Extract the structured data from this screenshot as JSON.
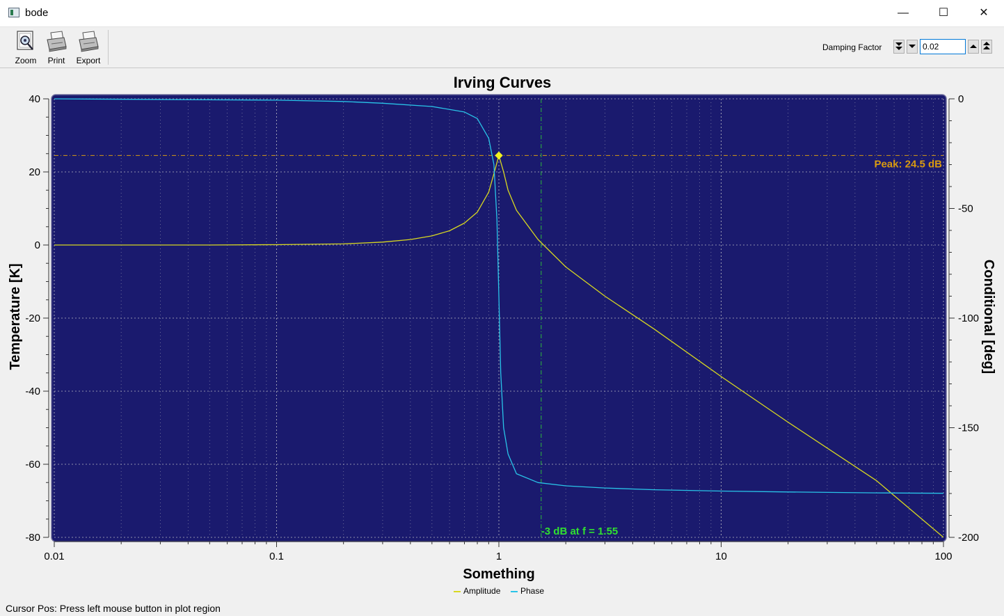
{
  "window": {
    "title": "bode",
    "minimize": "—",
    "maximize": "☐",
    "close": "✕"
  },
  "toolbar": {
    "zoom_label": "Zoom",
    "print_label": "Print",
    "export_label": "Export",
    "damping_label": "Damping Factor",
    "damping_value": "0.02"
  },
  "chart_data": {
    "type": "line",
    "title": "Irving Curves",
    "xlabel": "Something",
    "ylabel_left": "Temperature [K]",
    "ylabel_right": "Conditional [deg]",
    "xscale": "log",
    "xlim": [
      0.01,
      100
    ],
    "ylim_left": [
      -80,
      40
    ],
    "ylim_right": [
      -200,
      0
    ],
    "x_ticks": [
      "0.01",
      "0.1",
      "1",
      "10",
      "100"
    ],
    "y_ticks_left": [
      "40",
      "20",
      "0",
      "-20",
      "-40",
      "-60",
      "-80"
    ],
    "y_ticks_right": [
      "0",
      "-50",
      "-100",
      "-150",
      "-200"
    ],
    "grid": true,
    "background": "#1a1a6e",
    "series": [
      {
        "name": "Amplitude",
        "axis": "left",
        "color": "#d8d820",
        "x": [
          0.01,
          0.05,
          0.1,
          0.2,
          0.3,
          0.4,
          0.5,
          0.6,
          0.7,
          0.8,
          0.9,
          0.95,
          1.0,
          1.05,
          1.1,
          1.2,
          1.5,
          2,
          3,
          5,
          10,
          20,
          50,
          100
        ],
        "y": [
          0,
          0,
          0.1,
          0.3,
          0.8,
          1.5,
          2.5,
          3.9,
          6.0,
          9.0,
          14.5,
          19.5,
          24.5,
          20.0,
          15.0,
          9.5,
          1.5,
          -6,
          -14,
          -23,
          -36,
          -48.5,
          -64.5,
          -80
        ]
      },
      {
        "name": "Phase",
        "axis": "right",
        "color": "#29c4e8",
        "x": [
          0.01,
          0.1,
          0.2,
          0.3,
          0.5,
          0.7,
          0.8,
          0.9,
          0.95,
          0.98,
          1.0,
          1.02,
          1.05,
          1.1,
          1.2,
          1.5,
          2,
          3,
          5,
          10,
          20,
          50,
          100
        ],
        "y": [
          0,
          -0.6,
          -1.2,
          -2,
          -3.5,
          -6,
          -9,
          -18,
          -30,
          -55,
          -90,
          -125,
          -150,
          -162,
          -171,
          -175,
          -176.5,
          -177.5,
          -178.3,
          -178.9,
          -179.3,
          -179.7,
          -179.9
        ]
      }
    ],
    "annotations": [
      {
        "text": "Peak: 24.5 dB",
        "type": "hline",
        "y": 24.5,
        "color": "#d89a10"
      },
      {
        "text": "-3 dB at f = 1.55",
        "type": "vline",
        "x": 1.55,
        "color": "#30e030"
      }
    ],
    "peak_marker": {
      "x": 1.0,
      "y": 24.5
    },
    "legend_placement": "bottom"
  },
  "status": {
    "text": "Cursor Pos: Press left mouse button in plot region"
  }
}
